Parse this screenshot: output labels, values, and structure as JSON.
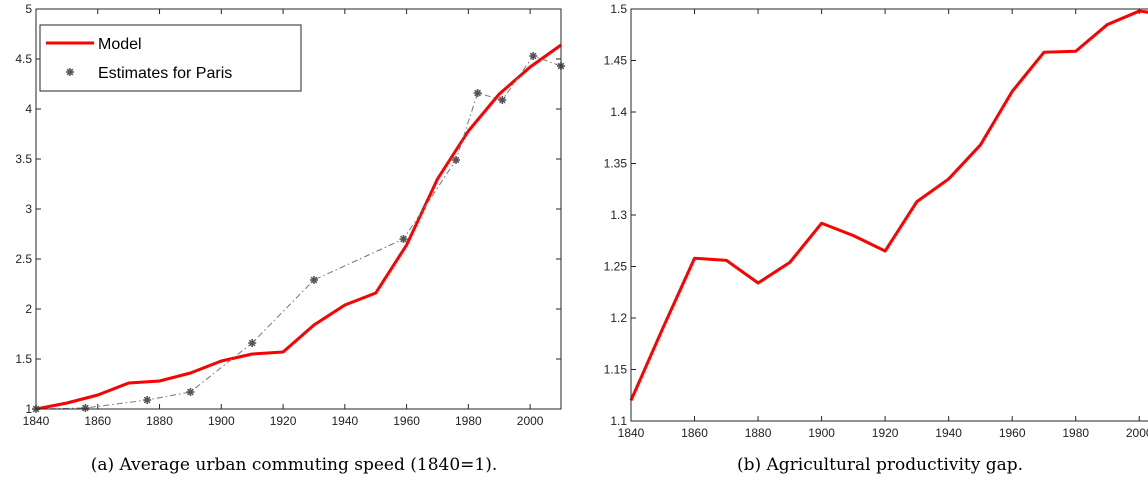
{
  "chart_data": [
    {
      "type": "line",
      "caption": "(a) Average urban commuting speed (1840=1).",
      "xlim": [
        1840,
        2010
      ],
      "ylim": [
        1,
        5
      ],
      "xticks": [
        1840,
        1860,
        1880,
        1900,
        1920,
        1940,
        1960,
        1980,
        2000
      ],
      "yticks": [
        "1",
        "1.5",
        "2",
        "2.5",
        "3",
        "3.5",
        "4",
        "4.5",
        "5"
      ],
      "grid": false,
      "legend": "top-left",
      "series": [
        {
          "name": "Model",
          "color": "#ff0000",
          "style": "solid",
          "x": [
            1840,
            1850,
            1860,
            1870,
            1880,
            1890,
            1900,
            1910,
            1920,
            1930,
            1940,
            1950,
            1960,
            1970,
            1980,
            1990,
            2000,
            2010
          ],
          "y": [
            1.0,
            1.06,
            1.14,
            1.26,
            1.28,
            1.36,
            1.48,
            1.55,
            1.57,
            1.84,
            2.04,
            2.16,
            2.64,
            3.3,
            3.78,
            4.15,
            4.42,
            4.64
          ]
        },
        {
          "name": "Estimates for Paris",
          "color": "#555555",
          "style": "dashdot-markers",
          "x": [
            1840,
            1856,
            1876,
            1890,
            1910,
            1930,
            1959,
            1976,
            1983,
            1991,
            2001,
            2010
          ],
          "y": [
            1.0,
            1.01,
            1.09,
            1.17,
            1.66,
            2.29,
            2.7,
            3.49,
            4.16,
            4.09,
            4.53,
            4.43
          ]
        }
      ]
    },
    {
      "type": "line",
      "caption": "(b) Agricultural productivity gap.",
      "xlim": [
        1840,
        2010
      ],
      "ylim": [
        1.1,
        1.5
      ],
      "xticks": [
        1840,
        1860,
        1880,
        1900,
        1920,
        1940,
        1960,
        1980,
        2000
      ],
      "yticks": [
        "1.1",
        "1.15",
        "1.2",
        "1.25",
        "1.3",
        "1.35",
        "1.4",
        "1.45",
        "1.5"
      ],
      "grid": false,
      "series": [
        {
          "color": "#ff0000",
          "style": "solid",
          "x": [
            1840,
            1850,
            1860,
            1870,
            1880,
            1890,
            1900,
            1910,
            1920,
            1930,
            1940,
            1950,
            1960,
            1970,
            1980,
            1990,
            2000,
            2010
          ],
          "y": [
            1.12,
            1.19,
            1.258,
            1.256,
            1.234,
            1.254,
            1.292,
            1.28,
            1.265,
            1.313,
            1.335,
            1.368,
            1.42,
            1.458,
            1.459,
            1.485,
            1.498,
            1.494
          ]
        }
      ]
    }
  ]
}
